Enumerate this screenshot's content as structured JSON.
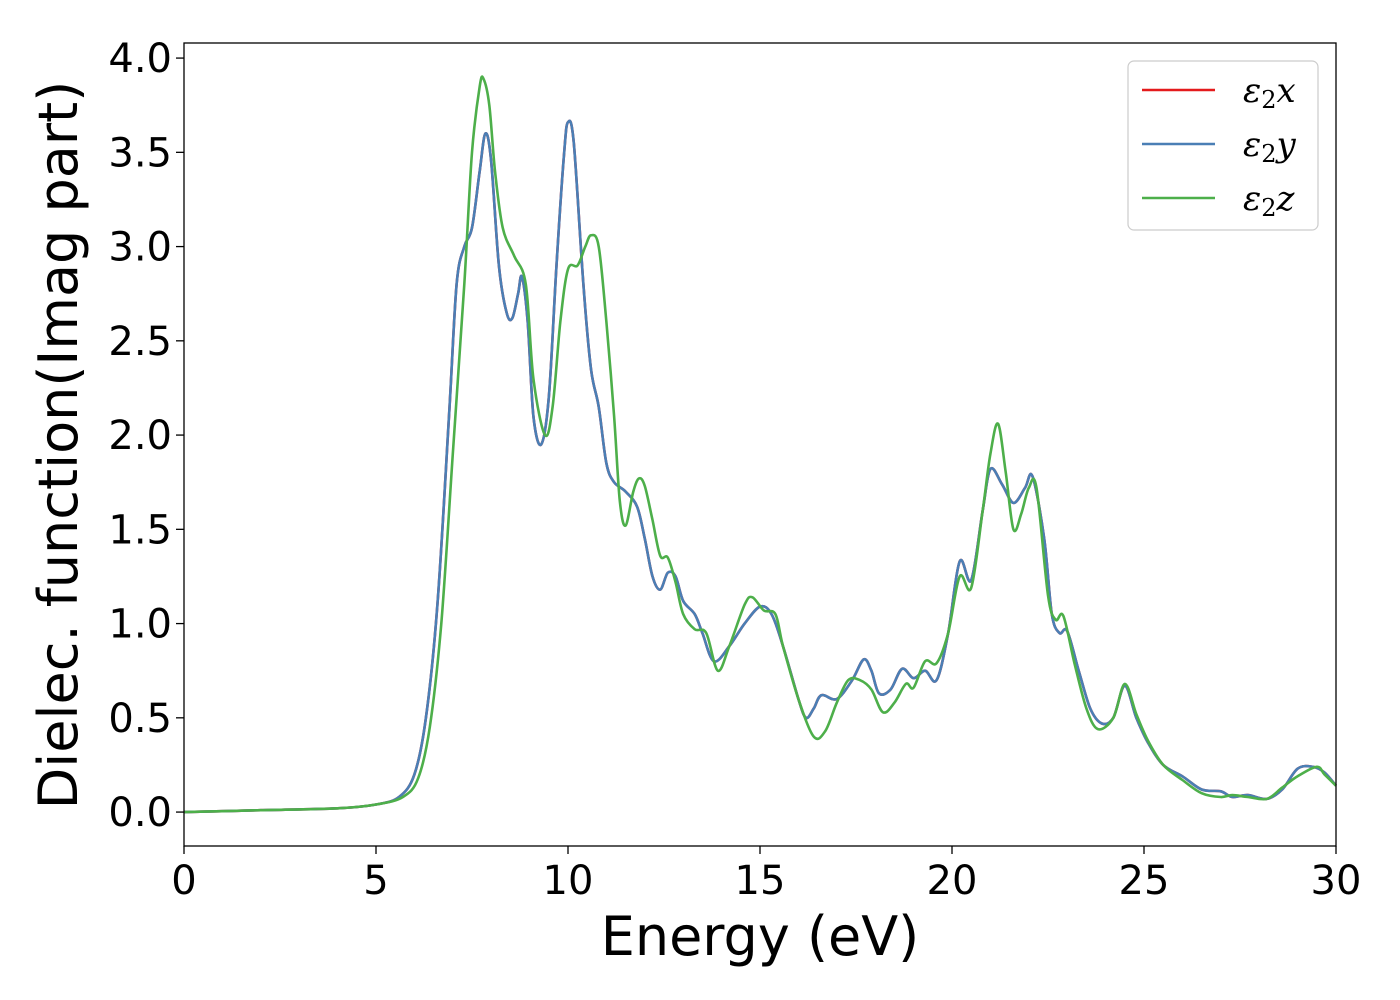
{
  "chart_data": {
    "type": "line",
    "xlabel": "Energy (eV)",
    "ylabel": "Dielec. function(Imag part)",
    "xlim": [
      0,
      30
    ],
    "ylim": [
      -0.18,
      4.08
    ],
    "xticks": [
      0,
      5,
      10,
      15,
      20,
      25,
      30
    ],
    "yticks": [
      0.0,
      0.5,
      1.0,
      1.5,
      2.0,
      2.5,
      3.0,
      3.5,
      4.0
    ],
    "xtick_labels": [
      "0",
      "5",
      "10",
      "15",
      "20",
      "25",
      "30"
    ],
    "ytick_labels": [
      "0.0",
      "0.5",
      "1.0",
      "1.5",
      "2.0",
      "2.5",
      "3.0",
      "3.5",
      "4.0"
    ],
    "grid": false,
    "legend_position": "top-right",
    "series": [
      {
        "name": "ε2x",
        "legend_symbol": "ε",
        "legend_sub": "2",
        "legend_tail": "x",
        "color": "#e41a1c",
        "points": [
          [
            0,
            0
          ],
          [
            2,
            0.01
          ],
          [
            4,
            0.02
          ],
          [
            5,
            0.04
          ],
          [
            5.6,
            0.08
          ],
          [
            6,
            0.2
          ],
          [
            6.3,
            0.5
          ],
          [
            6.6,
            1.1
          ],
          [
            6.9,
            2.1
          ],
          [
            7.1,
            2.8
          ],
          [
            7.3,
            3.0
          ],
          [
            7.5,
            3.1
          ],
          [
            7.7,
            3.4
          ],
          [
            7.85,
            3.6
          ],
          [
            8.0,
            3.45
          ],
          [
            8.2,
            2.9
          ],
          [
            8.4,
            2.65
          ],
          [
            8.55,
            2.62
          ],
          [
            8.7,
            2.75
          ],
          [
            8.8,
            2.84
          ],
          [
            8.95,
            2.6
          ],
          [
            9.1,
            2.1
          ],
          [
            9.3,
            1.95
          ],
          [
            9.5,
            2.2
          ],
          [
            9.7,
            2.9
          ],
          [
            9.9,
            3.5
          ],
          [
            10.0,
            3.66
          ],
          [
            10.15,
            3.55
          ],
          [
            10.4,
            2.8
          ],
          [
            10.6,
            2.35
          ],
          [
            10.8,
            2.15
          ],
          [
            11.0,
            1.85
          ],
          [
            11.2,
            1.75
          ],
          [
            11.5,
            1.7
          ],
          [
            11.8,
            1.62
          ],
          [
            12.0,
            1.45
          ],
          [
            12.2,
            1.25
          ],
          [
            12.4,
            1.18
          ],
          [
            12.6,
            1.27
          ],
          [
            12.8,
            1.25
          ],
          [
            13.0,
            1.12
          ],
          [
            13.3,
            1.05
          ],
          [
            13.5,
            0.95
          ],
          [
            13.8,
            0.8
          ],
          [
            14.2,
            0.88
          ],
          [
            14.6,
            1.0
          ],
          [
            15.0,
            1.09
          ],
          [
            15.3,
            1.05
          ],
          [
            15.6,
            0.88
          ],
          [
            16.0,
            0.6
          ],
          [
            16.2,
            0.5
          ],
          [
            16.4,
            0.55
          ],
          [
            16.6,
            0.62
          ],
          [
            17.0,
            0.6
          ],
          [
            17.4,
            0.7
          ],
          [
            17.7,
            0.81
          ],
          [
            17.9,
            0.75
          ],
          [
            18.1,
            0.63
          ],
          [
            18.4,
            0.65
          ],
          [
            18.7,
            0.76
          ],
          [
            19.0,
            0.71
          ],
          [
            19.3,
            0.75
          ],
          [
            19.6,
            0.7
          ],
          [
            19.9,
            0.95
          ],
          [
            20.2,
            1.33
          ],
          [
            20.5,
            1.23
          ],
          [
            20.8,
            1.6
          ],
          [
            21.0,
            1.82
          ],
          [
            21.3,
            1.74
          ],
          [
            21.6,
            1.64
          ],
          [
            21.9,
            1.72
          ],
          [
            22.1,
            1.78
          ],
          [
            22.4,
            1.45
          ],
          [
            22.6,
            1.05
          ],
          [
            22.8,
            0.95
          ],
          [
            23.0,
            0.96
          ],
          [
            23.3,
            0.75
          ],
          [
            23.6,
            0.55
          ],
          [
            23.9,
            0.47
          ],
          [
            24.2,
            0.5
          ],
          [
            24.5,
            0.67
          ],
          [
            24.8,
            0.5
          ],
          [
            25.1,
            0.37
          ],
          [
            25.5,
            0.25
          ],
          [
            26.0,
            0.19
          ],
          [
            26.5,
            0.12
          ],
          [
            27.0,
            0.11
          ],
          [
            27.3,
            0.08
          ],
          [
            27.7,
            0.09
          ],
          [
            28.2,
            0.07
          ],
          [
            28.6,
            0.12
          ],
          [
            29.0,
            0.23
          ],
          [
            29.4,
            0.24
          ],
          [
            29.7,
            0.21
          ],
          [
            30,
            0.14
          ]
        ]
      },
      {
        "name": "ε2y",
        "legend_symbol": "ε",
        "legend_sub": "2",
        "legend_tail": "y",
        "color": "#4a7fb5",
        "points": [
          [
            0,
            0
          ],
          [
            2,
            0.01
          ],
          [
            4,
            0.02
          ],
          [
            5,
            0.04
          ],
          [
            5.6,
            0.08
          ],
          [
            6,
            0.2
          ],
          [
            6.3,
            0.5
          ],
          [
            6.6,
            1.1
          ],
          [
            6.9,
            2.1
          ],
          [
            7.1,
            2.8
          ],
          [
            7.3,
            3.0
          ],
          [
            7.5,
            3.1
          ],
          [
            7.7,
            3.4
          ],
          [
            7.85,
            3.6
          ],
          [
            8.0,
            3.45
          ],
          [
            8.2,
            2.9
          ],
          [
            8.4,
            2.65
          ],
          [
            8.55,
            2.62
          ],
          [
            8.7,
            2.75
          ],
          [
            8.8,
            2.84
          ],
          [
            8.95,
            2.6
          ],
          [
            9.1,
            2.1
          ],
          [
            9.3,
            1.95
          ],
          [
            9.5,
            2.2
          ],
          [
            9.7,
            2.9
          ],
          [
            9.9,
            3.5
          ],
          [
            10.0,
            3.66
          ],
          [
            10.15,
            3.55
          ],
          [
            10.4,
            2.8
          ],
          [
            10.6,
            2.35
          ],
          [
            10.8,
            2.15
          ],
          [
            11.0,
            1.85
          ],
          [
            11.2,
            1.75
          ],
          [
            11.5,
            1.7
          ],
          [
            11.8,
            1.62
          ],
          [
            12.0,
            1.45
          ],
          [
            12.2,
            1.25
          ],
          [
            12.4,
            1.18
          ],
          [
            12.6,
            1.27
          ],
          [
            12.8,
            1.25
          ],
          [
            13.0,
            1.12
          ],
          [
            13.3,
            1.05
          ],
          [
            13.5,
            0.95
          ],
          [
            13.8,
            0.8
          ],
          [
            14.2,
            0.88
          ],
          [
            14.6,
            1.0
          ],
          [
            15.0,
            1.09
          ],
          [
            15.3,
            1.05
          ],
          [
            15.6,
            0.88
          ],
          [
            16.0,
            0.6
          ],
          [
            16.2,
            0.5
          ],
          [
            16.4,
            0.55
          ],
          [
            16.6,
            0.62
          ],
          [
            17.0,
            0.6
          ],
          [
            17.4,
            0.7
          ],
          [
            17.7,
            0.81
          ],
          [
            17.9,
            0.75
          ],
          [
            18.1,
            0.63
          ],
          [
            18.4,
            0.65
          ],
          [
            18.7,
            0.76
          ],
          [
            19.0,
            0.71
          ],
          [
            19.3,
            0.75
          ],
          [
            19.6,
            0.7
          ],
          [
            19.9,
            0.95
          ],
          [
            20.2,
            1.33
          ],
          [
            20.5,
            1.23
          ],
          [
            20.8,
            1.6
          ],
          [
            21.0,
            1.82
          ],
          [
            21.3,
            1.74
          ],
          [
            21.6,
            1.64
          ],
          [
            21.9,
            1.72
          ],
          [
            22.1,
            1.78
          ],
          [
            22.4,
            1.45
          ],
          [
            22.6,
            1.05
          ],
          [
            22.8,
            0.95
          ],
          [
            23.0,
            0.96
          ],
          [
            23.3,
            0.75
          ],
          [
            23.6,
            0.55
          ],
          [
            23.9,
            0.47
          ],
          [
            24.2,
            0.5
          ],
          [
            24.5,
            0.67
          ],
          [
            24.8,
            0.5
          ],
          [
            25.1,
            0.37
          ],
          [
            25.5,
            0.25
          ],
          [
            26.0,
            0.19
          ],
          [
            26.5,
            0.12
          ],
          [
            27.0,
            0.11
          ],
          [
            27.3,
            0.08
          ],
          [
            27.7,
            0.09
          ],
          [
            28.2,
            0.07
          ],
          [
            28.6,
            0.12
          ],
          [
            29.0,
            0.23
          ],
          [
            29.4,
            0.24
          ],
          [
            29.7,
            0.21
          ],
          [
            30,
            0.14
          ]
        ]
      },
      {
        "name": "ε2z",
        "legend_symbol": "ε",
        "legend_sub": "2",
        "legend_tail": "z",
        "color": "#4daf4a",
        "points": [
          [
            0,
            0
          ],
          [
            2,
            0.01
          ],
          [
            4,
            0.02
          ],
          [
            5,
            0.04
          ],
          [
            5.7,
            0.08
          ],
          [
            6.1,
            0.18
          ],
          [
            6.4,
            0.45
          ],
          [
            6.7,
            1.0
          ],
          [
            7.0,
            1.9
          ],
          [
            7.3,
            2.8
          ],
          [
            7.5,
            3.5
          ],
          [
            7.7,
            3.85
          ],
          [
            7.8,
            3.89
          ],
          [
            7.95,
            3.75
          ],
          [
            8.1,
            3.4
          ],
          [
            8.3,
            3.1
          ],
          [
            8.6,
            2.95
          ],
          [
            8.9,
            2.8
          ],
          [
            9.1,
            2.3
          ],
          [
            9.4,
            2.0
          ],
          [
            9.6,
            2.15
          ],
          [
            9.8,
            2.6
          ],
          [
            10.0,
            2.88
          ],
          [
            10.25,
            2.9
          ],
          [
            10.45,
            3.0
          ],
          [
            10.6,
            3.06
          ],
          [
            10.8,
            3.0
          ],
          [
            11.0,
            2.6
          ],
          [
            11.2,
            2.1
          ],
          [
            11.35,
            1.65
          ],
          [
            11.5,
            1.52
          ],
          [
            11.7,
            1.7
          ],
          [
            11.85,
            1.77
          ],
          [
            12.0,
            1.73
          ],
          [
            12.2,
            1.55
          ],
          [
            12.4,
            1.36
          ],
          [
            12.6,
            1.35
          ],
          [
            12.8,
            1.22
          ],
          [
            13.0,
            1.05
          ],
          [
            13.3,
            0.97
          ],
          [
            13.6,
            0.95
          ],
          [
            13.9,
            0.75
          ],
          [
            14.2,
            0.88
          ],
          [
            14.6,
            1.1
          ],
          [
            14.8,
            1.14
          ],
          [
            15.1,
            1.07
          ],
          [
            15.4,
            1.05
          ],
          [
            15.6,
            0.88
          ],
          [
            16.0,
            0.6
          ],
          [
            16.4,
            0.4
          ],
          [
            16.7,
            0.43
          ],
          [
            17.0,
            0.58
          ],
          [
            17.3,
            0.7
          ],
          [
            17.6,
            0.7
          ],
          [
            17.9,
            0.65
          ],
          [
            18.2,
            0.53
          ],
          [
            18.5,
            0.58
          ],
          [
            18.8,
            0.68
          ],
          [
            19.0,
            0.66
          ],
          [
            19.3,
            0.8
          ],
          [
            19.6,
            0.79
          ],
          [
            19.9,
            0.95
          ],
          [
            20.2,
            1.25
          ],
          [
            20.5,
            1.19
          ],
          [
            20.8,
            1.6
          ],
          [
            21.0,
            1.9
          ],
          [
            21.2,
            2.06
          ],
          [
            21.4,
            1.8
          ],
          [
            21.6,
            1.5
          ],
          [
            21.8,
            1.58
          ],
          [
            22.0,
            1.72
          ],
          [
            22.2,
            1.72
          ],
          [
            22.5,
            1.15
          ],
          [
            22.7,
            1.02
          ],
          [
            22.9,
            1.04
          ],
          [
            23.2,
            0.78
          ],
          [
            23.5,
            0.55
          ],
          [
            23.8,
            0.44
          ],
          [
            24.2,
            0.5
          ],
          [
            24.5,
            0.68
          ],
          [
            24.8,
            0.52
          ],
          [
            25.1,
            0.38
          ],
          [
            25.5,
            0.25
          ],
          [
            26.0,
            0.17
          ],
          [
            26.5,
            0.1
          ],
          [
            27.0,
            0.08
          ],
          [
            27.3,
            0.09
          ],
          [
            27.7,
            0.08
          ],
          [
            28.2,
            0.07
          ],
          [
            28.6,
            0.13
          ],
          [
            29.0,
            0.19
          ],
          [
            29.5,
            0.24
          ],
          [
            29.7,
            0.2
          ],
          [
            30,
            0.14
          ]
        ]
      }
    ]
  }
}
